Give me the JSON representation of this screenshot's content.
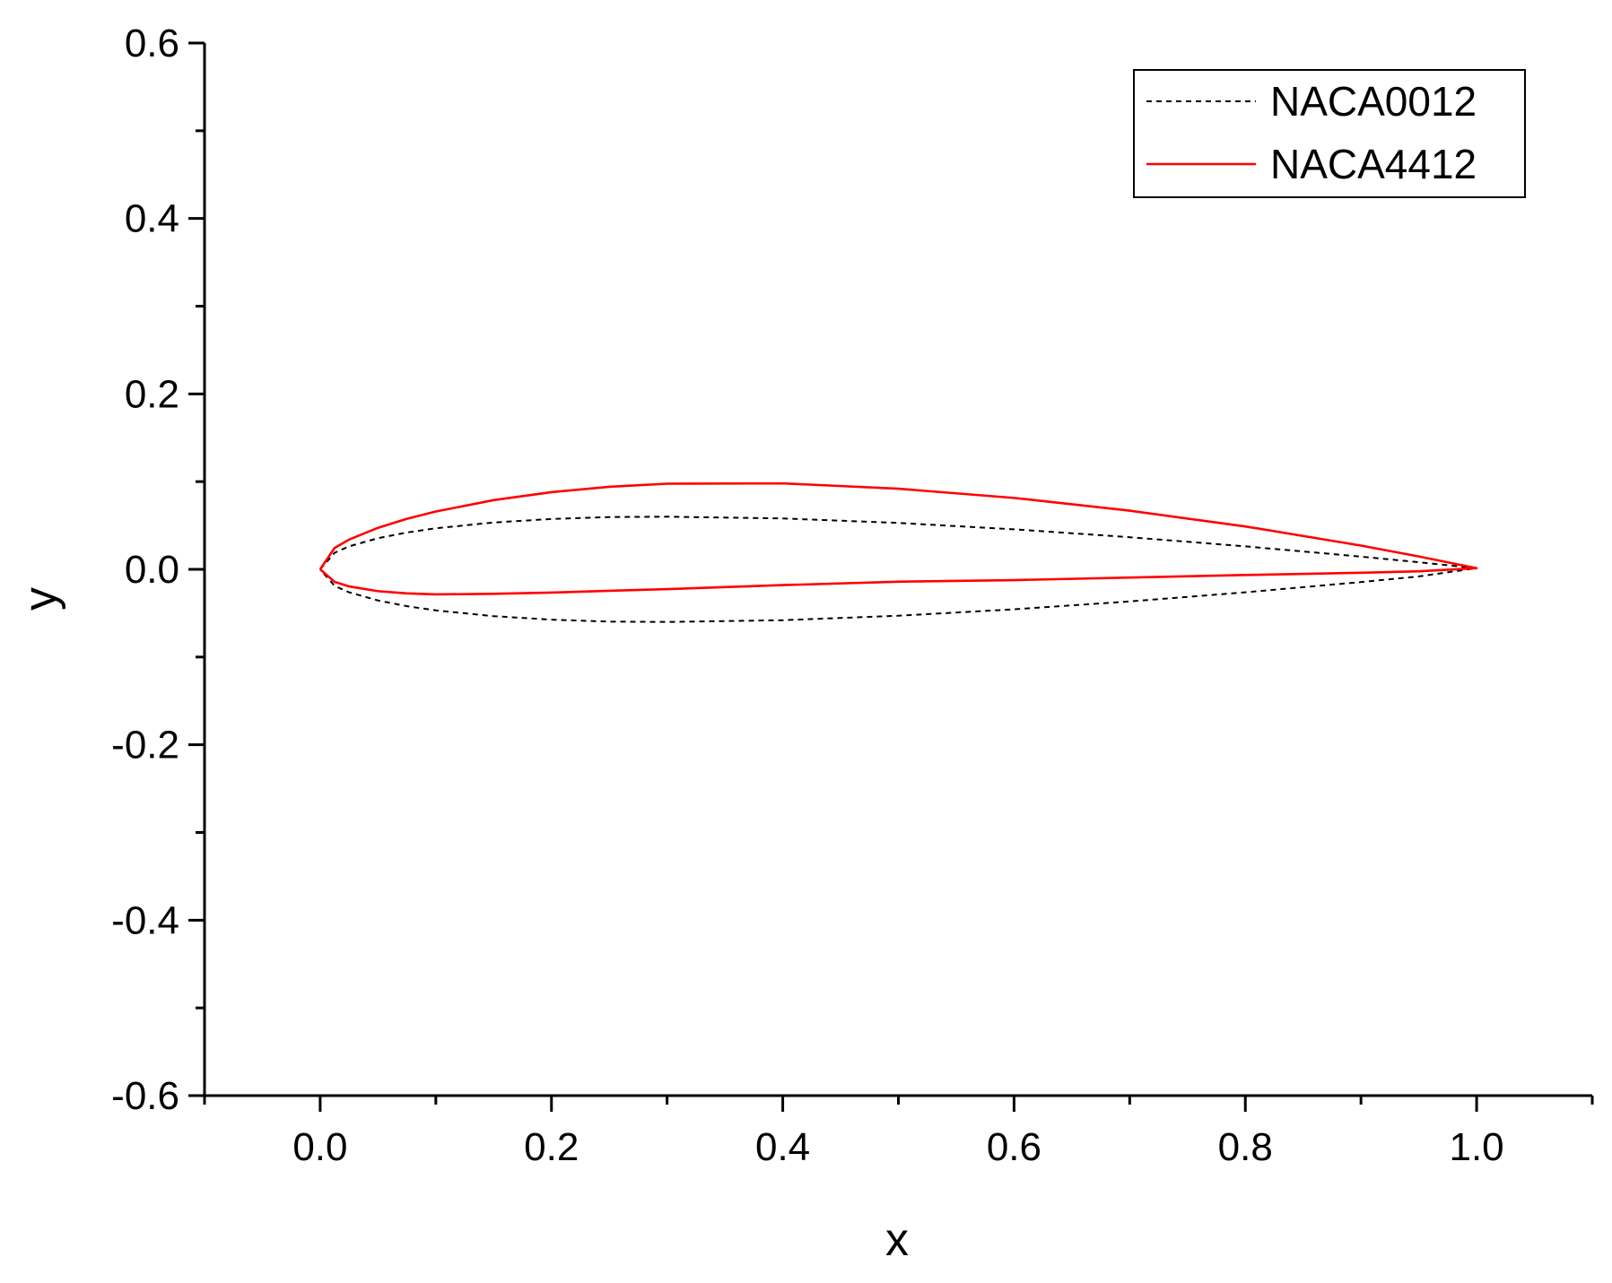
{
  "chart_data": {
    "type": "line",
    "xlabel": "x",
    "ylabel": "y",
    "xlim": [
      -0.1,
      1.1
    ],
    "ylim": [
      -0.6,
      0.6
    ],
    "xticks": [
      "0.0",
      "0.2",
      "0.4",
      "0.6",
      "0.8",
      "1.0"
    ],
    "yticks": [
      "0.6",
      "0.4",
      "0.2",
      "0.0",
      "-0.2",
      "-0.4",
      "-0.6"
    ],
    "grid": false,
    "legend_position": "top-right",
    "series": [
      {
        "name": "NACA0012",
        "color": "#000000",
        "dash": "dashed",
        "x": [
          0,
          0.0125,
          0.025,
          0.05,
          0.075,
          0.1,
          0.15,
          0.2,
          0.25,
          0.3,
          0.4,
          0.5,
          0.6,
          0.7,
          0.8,
          0.9,
          0.95,
          1.0,
          0.95,
          0.9,
          0.8,
          0.7,
          0.6,
          0.5,
          0.4,
          0.3,
          0.25,
          0.2,
          0.15,
          0.1,
          0.075,
          0.05,
          0.025,
          0.0125,
          0
        ],
        "y": [
          0,
          0.0189,
          0.0262,
          0.0355,
          0.042,
          0.0468,
          0.0534,
          0.0574,
          0.0596,
          0.06,
          0.058,
          0.0529,
          0.0456,
          0.0366,
          0.0262,
          0.0145,
          0.0081,
          0.0013,
          -0.0081,
          -0.0145,
          -0.0262,
          -0.0366,
          -0.0456,
          -0.0529,
          -0.058,
          -0.06,
          -0.0596,
          -0.0574,
          -0.0534,
          -0.0468,
          -0.042,
          -0.0355,
          -0.0262,
          -0.0189,
          0
        ]
      },
      {
        "name": "NACA4412",
        "color": "#ff0000",
        "dash": "solid",
        "x": [
          0,
          0.0125,
          0.025,
          0.05,
          0.075,
          0.1,
          0.15,
          0.2,
          0.25,
          0.3,
          0.4,
          0.5,
          0.6,
          0.7,
          0.8,
          0.9,
          0.95,
          1.0,
          0.95,
          0.9,
          0.8,
          0.7,
          0.6,
          0.5,
          0.4,
          0.3,
          0.25,
          0.2,
          0.15,
          0.1,
          0.075,
          0.05,
          0.025,
          0.0125,
          0
        ],
        "y": [
          0,
          0.0244,
          0.0339,
          0.0473,
          0.0576,
          0.0659,
          0.0789,
          0.088,
          0.0941,
          0.0976,
          0.098,
          0.0919,
          0.0814,
          0.0669,
          0.0489,
          0.0271,
          0.0147,
          0.0013,
          -0.0022,
          -0.0039,
          -0.0065,
          -0.0094,
          -0.0123,
          -0.0141,
          -0.018,
          -0.0226,
          -0.0245,
          -0.0265,
          -0.0279,
          -0.0286,
          -0.0274,
          -0.0249,
          -0.0195,
          -0.0143,
          0
        ]
      }
    ]
  }
}
